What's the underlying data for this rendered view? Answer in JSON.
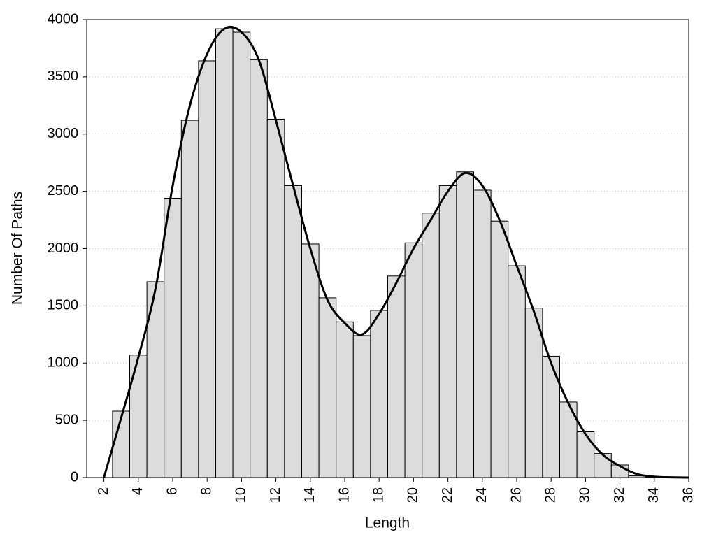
{
  "chart_data": {
    "type": "histogram",
    "x_label": "Length",
    "y_label": "Number Of Paths",
    "bins": [
      2.5,
      3.5,
      4.5,
      5.5,
      6.5,
      7.5,
      8.5,
      9.5,
      10.5,
      11.5,
      12.5,
      13.5,
      14.5,
      15.5,
      16.5,
      17.5,
      18.5,
      19.5,
      20.5,
      21.5,
      22.5,
      23.5,
      24.5,
      25.5,
      26.5,
      27.5,
      28.5,
      29.5,
      30.5,
      31.5,
      32.5,
      33.5,
      34.5,
      35.5
    ],
    "values": [
      580,
      1070,
      1710,
      2440,
      3120,
      3640,
      3920,
      3890,
      3650,
      3130,
      2550,
      2040,
      1570,
      1360,
      1240,
      1460,
      1760,
      2050,
      2310,
      2550,
      2670,
      2510,
      2240,
      1850,
      1480,
      1060,
      660,
      400,
      210,
      110,
      15,
      5,
      3
    ],
    "color": "#dcdcdc",
    "edge_color": "#000000",
    "curve": {
      "x": [
        2,
        3,
        4,
        5,
        6,
        7,
        8,
        9,
        10,
        11,
        12,
        13,
        14,
        15,
        16,
        17,
        18,
        19,
        20,
        21,
        22,
        23,
        24,
        25,
        26,
        27,
        28,
        29,
        30,
        31,
        32,
        33,
        34,
        35,
        36
      ],
      "values": [
        0,
        520,
        1050,
        1650,
        2550,
        3250,
        3700,
        3920,
        3890,
        3650,
        3120,
        2550,
        2000,
        1550,
        1350,
        1250,
        1430,
        1700,
        2000,
        2250,
        2500,
        2660,
        2550,
        2250,
        1850,
        1450,
        1000,
        650,
        380,
        200,
        100,
        30,
        8,
        2,
        0
      ],
      "color": "#000000"
    },
    "xlim": [
      1,
      36
    ],
    "ylim": [
      0,
      4000
    ],
    "xticks": [
      2,
      4,
      6,
      8,
      10,
      12,
      14,
      16,
      18,
      20,
      22,
      24,
      26,
      28,
      30,
      32,
      34,
      36
    ],
    "yticks": [
      0,
      500,
      1000,
      1500,
      2000,
      2500,
      3000,
      3500,
      4000
    ],
    "grid": true
  }
}
